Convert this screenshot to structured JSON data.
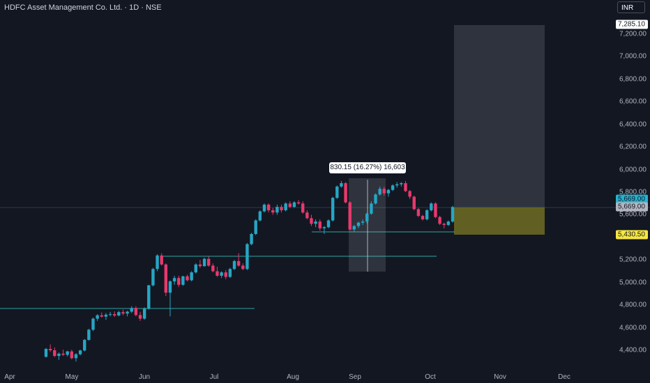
{
  "header": {
    "title": "HDFC Asset Management Co. Ltd. · 1D · NSE",
    "currency": "INR"
  },
  "axis": {
    "y_ticks": [
      "7,200.00",
      "7,000.00",
      "6,800.00",
      "6,600.00",
      "6,400.00",
      "6,200.00",
      "6,000.00",
      "5,800.00",
      "5,600.00",
      "5,200.00",
      "5,000.00",
      "4,800.00",
      "4,600.00",
      "4,400.00"
    ],
    "x_ticks": [
      "Apr",
      "May",
      "Jun",
      "Jul",
      "Aug",
      "Sep",
      "Oct",
      "Nov",
      "Dec"
    ]
  },
  "price_tags": {
    "target": "7,285.10",
    "last_price": "5,669.00",
    "current": "5,669.00",
    "stop": "5,430.50"
  },
  "measure": {
    "text": "830.15 (16.27%) 16,603"
  },
  "colors": {
    "up": "#26a6c4",
    "down": "#e8396d",
    "bg": "#131722",
    "line": "#2ea6a3"
  },
  "chart_data": {
    "type": "candlestick",
    "ylim": [
      4300,
      7300
    ],
    "candles": [
      [
        4342,
        4420,
        4335,
        4412
      ],
      [
        4412,
        4452,
        4385,
        4400
      ],
      [
        4400,
        4425,
        4340,
        4350
      ],
      [
        4350,
        4380,
        4315,
        4370
      ],
      [
        4370,
        4405,
        4350,
        4360
      ],
      [
        4360,
        4395,
        4345,
        4390
      ],
      [
        4390,
        4405,
        4320,
        4330
      ],
      [
        4330,
        4375,
        4300,
        4365
      ],
      [
        4365,
        4405,
        4355,
        4398
      ],
      [
        4398,
        4500,
        4390,
        4492
      ],
      [
        4492,
        4590,
        4485,
        4582
      ],
      [
        4582,
        4690,
        4570,
        4680
      ],
      [
        4680,
        4720,
        4660,
        4710
      ],
      [
        4710,
        4735,
        4690,
        4698
      ],
      [
        4698,
        4730,
        4670,
        4715
      ],
      [
        4715,
        4740,
        4700,
        4720
      ],
      [
        4720,
        4745,
        4695,
        4708
      ],
      [
        4708,
        4750,
        4700,
        4738
      ],
      [
        4738,
        4760,
        4710,
        4725
      ],
      [
        4725,
        4750,
        4700,
        4742
      ],
      [
        4742,
        4790,
        4730,
        4775
      ],
      [
        4775,
        4790,
        4700,
        4712
      ],
      [
        4712,
        4740,
        4660,
        4680
      ],
      [
        4680,
        4780,
        4670,
        4770
      ],
      [
        4770,
        4980,
        4760,
        4975
      ],
      [
        4975,
        5130,
        4965,
        5120
      ],
      [
        5120,
        5250,
        5100,
        5240
      ],
      [
        5240,
        5260,
        5150,
        5160
      ],
      [
        5160,
        5170,
        4880,
        4910
      ],
      [
        4910,
        5020,
        4700,
        5010
      ],
      [
        5010,
        5060,
        4980,
        5040
      ],
      [
        5040,
        5060,
        4960,
        4980
      ],
      [
        4980,
        5060,
        4970,
        5055
      ],
      [
        5055,
        5070,
        5010,
        5020
      ],
      [
        5020,
        5100,
        5010,
        5090
      ],
      [
        5090,
        5170,
        5080,
        5160
      ],
      [
        5160,
        5200,
        5130,
        5145
      ],
      [
        5145,
        5220,
        5140,
        5210
      ],
      [
        5210,
        5230,
        5140,
        5150
      ],
      [
        5150,
        5170,
        5090,
        5100
      ],
      [
        5100,
        5140,
        5050,
        5060
      ],
      [
        5060,
        5100,
        5040,
        5090
      ],
      [
        5090,
        5110,
        5030,
        5050
      ],
      [
        5050,
        5130,
        5040,
        5120
      ],
      [
        5120,
        5200,
        5110,
        5190
      ],
      [
        5190,
        5260,
        5140,
        5150
      ],
      [
        5150,
        5170,
        5110,
        5120
      ],
      [
        5120,
        5350,
        5110,
        5340
      ],
      [
        5340,
        5440,
        5330,
        5430
      ],
      [
        5430,
        5560,
        5420,
        5550
      ],
      [
        5550,
        5640,
        5540,
        5630
      ],
      [
        5630,
        5700,
        5620,
        5690
      ],
      [
        5690,
        5700,
        5620,
        5640
      ],
      [
        5640,
        5660,
        5600,
        5620
      ],
      [
        5620,
        5690,
        5600,
        5670
      ],
      [
        5670,
        5690,
        5620,
        5640
      ],
      [
        5640,
        5710,
        5630,
        5700
      ],
      [
        5700,
        5720,
        5660,
        5670
      ],
      [
        5670,
        5720,
        5660,
        5710
      ],
      [
        5710,
        5730,
        5690,
        5700
      ],
      [
        5700,
        5720,
        5610,
        5620
      ],
      [
        5620,
        5640,
        5560,
        5570
      ],
      [
        5570,
        5600,
        5500,
        5520
      ],
      [
        5520,
        5560,
        5490,
        5540
      ],
      [
        5540,
        5560,
        5460,
        5480
      ],
      [
        5480,
        5500,
        5430,
        5490
      ],
      [
        5490,
        5560,
        5480,
        5550
      ],
      [
        5550,
        5760,
        5540,
        5750
      ],
      [
        5750,
        5860,
        5740,
        5850
      ],
      [
        5850,
        5900,
        5840,
        5880
      ],
      [
        5880,
        5890,
        5700,
        5710
      ],
      [
        5710,
        5720,
        5460,
        5470
      ],
      [
        5470,
        5510,
        5450,
        5500
      ],
      [
        5500,
        5540,
        5480,
        5530
      ],
      [
        5530,
        5560,
        5510,
        5540
      ],
      [
        5540,
        5620,
        5520,
        5610
      ],
      [
        5610,
        5720,
        5600,
        5700
      ],
      [
        5700,
        5790,
        5690,
        5780
      ],
      [
        5780,
        5850,
        5770,
        5830
      ],
      [
        5830,
        5850,
        5770,
        5790
      ],
      [
        5790,
        5830,
        5760,
        5820
      ],
      [
        5820,
        5870,
        5810,
        5860
      ],
      [
        5860,
        5890,
        5840,
        5870
      ],
      [
        5870,
        5890,
        5850,
        5880
      ],
      [
        5880,
        5900,
        5800,
        5810
      ],
      [
        5810,
        5820,
        5740,
        5760
      ],
      [
        5760,
        5770,
        5640,
        5650
      ],
      [
        5650,
        5660,
        5580,
        5590
      ],
      [
        5590,
        5600,
        5550,
        5560
      ],
      [
        5560,
        5650,
        5550,
        5640
      ],
      [
        5640,
        5710,
        5630,
        5700
      ],
      [
        5700,
        5710,
        5570,
        5580
      ],
      [
        5580,
        5590,
        5510,
        5520
      ],
      [
        5520,
        5530,
        5480,
        5510
      ],
      [
        5510,
        5550,
        5500,
        5540
      ],
      [
        5540,
        5680,
        5530,
        5669
      ]
    ]
  }
}
